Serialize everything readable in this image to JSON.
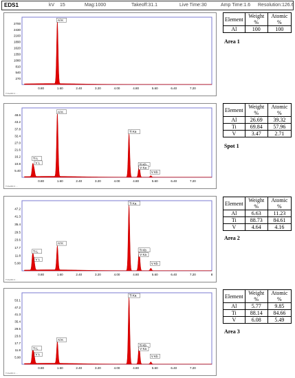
{
  "header": {
    "title": "EDS1",
    "kv_label": "kV",
    "kv_value": "15",
    "mag": "Mag:1000",
    "takeoff": "Takeoff:31.1",
    "live_time": "Live Time:30",
    "amp_time": "Amp Time:1.6",
    "resolution": "Resolution:126.6"
  },
  "table_headers": [
    "Element",
    "Weight %",
    "Atomic %"
  ],
  "chart_data": [
    {
      "type": "line",
      "area_label": "Area 1",
      "xlabel": "",
      "ylabel": "",
      "xlim": [
        0,
        8.0
      ],
      "ylim": [
        0,
        2970
      ],
      "x_ticks": [
        "0.80",
        "1.60",
        "2.40",
        "3.20",
        "4.00",
        "4.80",
        "5.60",
        "6.40",
        "7.20"
      ],
      "y_ticks": [
        "270",
        "540",
        "810",
        "1080",
        "1350",
        "1620",
        "1890",
        "2160",
        "2430",
        "2700"
      ],
      "peaks": [
        {
          "name": "Al K",
          "energy": 1.49,
          "height": 2750
        }
      ],
      "peak_labels": [
        {
          "text": "Al K",
          "energy": 1.49,
          "height": 2750
        }
      ],
      "composition": [
        {
          "element": "Al",
          "weight": "100",
          "atomic": "100"
        }
      ]
    },
    {
      "type": "line",
      "area_label": "Spot 1",
      "xlabel": "",
      "ylabel": "",
      "xlim": [
        0,
        8.0
      ],
      "ylim": [
        0,
        55.8
      ],
      "x_ticks": [
        "0.80",
        "1.60",
        "2.40",
        "3.20",
        "4.00",
        "4.80",
        "5.60",
        "6.40",
        "7.20"
      ],
      "y_ticks": [
        "5.40",
        "10.8",
        "16.2",
        "21.6",
        "27.0",
        "32.4",
        "37.8",
        "43.2",
        "48.6"
      ],
      "peaks": [
        {
          "name": "Ti L",
          "energy": 0.45,
          "height": 9.5
        },
        {
          "name": "V L",
          "energy": 0.51,
          "height": 5.5
        },
        {
          "name": "Al K",
          "energy": 1.49,
          "height": 51.0
        },
        {
          "name": "Ti Ka",
          "energy": 4.51,
          "height": 35.0
        },
        {
          "name": "Ti Kb",
          "energy": 4.93,
          "height": 6.5
        },
        {
          "name": "V Ka",
          "energy": 4.95,
          "height": 3.5
        },
        {
          "name": "V Kb",
          "energy": 5.43,
          "height": 1.2
        }
      ],
      "peak_labels": [
        {
          "text": "Ti L",
          "energy": 0.45,
          "height": 13.5
        },
        {
          "text": "V L",
          "energy": 0.55,
          "height": 10.0
        },
        {
          "text": "Al K",
          "energy": 1.49,
          "height": 51.0
        },
        {
          "text": "Ti Ka",
          "energy": 4.51,
          "height": 35.0
        },
        {
          "text": "Ti Kb",
          "energy": 4.93,
          "height": 8.6
        },
        {
          "text": "V Ka",
          "energy": 4.95,
          "height": 6.2
        },
        {
          "text": "V Kb",
          "energy": 5.43,
          "height": 2.6
        }
      ],
      "composition": [
        {
          "element": "Al",
          "weight": "26.69",
          "atomic": "39.32"
        },
        {
          "element": "Ti",
          "weight": "69.84",
          "atomic": "57.96"
        },
        {
          "element": "V",
          "weight": "3.47",
          "atomic": "2.71"
        }
      ]
    },
    {
      "type": "line",
      "area_label": "Area 2",
      "xlabel": "",
      "ylabel": "",
      "xlim": [
        0,
        8.0
      ],
      "ylim": [
        0,
        52.5
      ],
      "x_ticks": [
        "0.80",
        "1.60",
        "2.40",
        "3.20",
        "4.00",
        "4.80",
        "5.60",
        "6.40",
        "7.20",
        "8"
      ],
      "y_ticks": [
        "5.90",
        "11.8",
        "17.7",
        "23.6",
        "29.5",
        "35.4",
        "41.3",
        "47.2"
      ],
      "peaks": [
        {
          "name": "Ti L",
          "energy": 0.45,
          "height": 12.0
        },
        {
          "name": "V L",
          "energy": 0.51,
          "height": 6.0
        },
        {
          "name": "Al K",
          "energy": 1.49,
          "height": 18.0
        },
        {
          "name": "Ti Ka",
          "energy": 4.51,
          "height": 49.0
        },
        {
          "name": "Ti Kb",
          "energy": 4.93,
          "height": 9.5
        },
        {
          "name": "V Ka",
          "energy": 4.95,
          "height": 6.0
        },
        {
          "name": "V Kb",
          "energy": 5.43,
          "height": 1.8
        }
      ],
      "peak_labels": [
        {
          "text": "Ti L",
          "energy": 0.45,
          "height": 13.0
        },
        {
          "text": "V L",
          "energy": 0.55,
          "height": 7.0
        },
        {
          "text": "Al K",
          "energy": 1.49,
          "height": 19.0
        },
        {
          "text": "Ti Ka",
          "energy": 4.51,
          "height": 49.0
        },
        {
          "text": "Ti Kb",
          "energy": 4.93,
          "height": 14.0
        },
        {
          "text": "V Ka",
          "energy": 4.95,
          "height": 10.5
        },
        {
          "text": "V Kb",
          "energy": 5.43,
          "height": 4.0
        }
      ],
      "composition": [
        {
          "element": "Al",
          "weight": "6.63",
          "atomic": "11.23"
        },
        {
          "element": "Ti",
          "weight": "88.73",
          "atomic": "84.61"
        },
        {
          "element": "V",
          "weight": "4.64",
          "atomic": "4.16"
        }
      ]
    },
    {
      "type": "line",
      "area_label": "Area 3",
      "xlabel": "",
      "ylabel": "",
      "xlim": [
        0,
        8.0
      ],
      "ylim": [
        0,
        59.0
      ],
      "x_ticks": [
        "0.80",
        "1.60",
        "2.40",
        "3.20",
        "4.00",
        "4.80",
        "5.60",
        "6.40",
        "7.20"
      ],
      "y_ticks": [
        "5.90",
        "11.8",
        "17.7",
        "23.6",
        "29.5",
        "35.4",
        "41.3",
        "47.2",
        "53.1"
      ],
      "peaks": [
        {
          "name": "Ti L",
          "energy": 0.45,
          "height": 11.0
        },
        {
          "name": "V L",
          "energy": 0.51,
          "height": 6.0
        },
        {
          "name": "Al K",
          "energy": 1.49,
          "height": 18.0
        },
        {
          "name": "Ti Ka",
          "energy": 4.51,
          "height": 55.0
        },
        {
          "name": "Ti Kb",
          "energy": 4.93,
          "height": 10.0
        },
        {
          "name": "V Ka",
          "energy": 4.95,
          "height": 6.0
        },
        {
          "name": "V Kb",
          "energy": 5.43,
          "height": 1.8
        }
      ],
      "peak_labels": [
        {
          "text": "Ti L",
          "energy": 0.45,
          "height": 11.5
        },
        {
          "text": "V L",
          "energy": 0.55,
          "height": 6.5
        },
        {
          "text": "Al K",
          "energy": 1.49,
          "height": 18.5
        },
        {
          "text": "Ti Ka",
          "energy": 4.51,
          "height": 55.0
        },
        {
          "text": "Ti Kb",
          "energy": 4.93,
          "height": 14.0
        },
        {
          "text": "V Ka",
          "energy": 4.95,
          "height": 11.0
        },
        {
          "text": "V Kb",
          "energy": 5.43,
          "height": 5.0
        }
      ],
      "composition": [
        {
          "element": "Al",
          "weight": "5.77",
          "atomic": "9.85"
        },
        {
          "element": "Ti",
          "weight": "88.14",
          "atomic": "84.66"
        },
        {
          "element": "V",
          "weight": "6.08",
          "atomic": "5.49"
        }
      ]
    }
  ],
  "colors": {
    "spectrum_fill": "#e00000",
    "spectrum_line": "#c00000",
    "frame": "#7a7ad0",
    "axis_text": "#000000",
    "footer_text": "#555555"
  },
  "footer_text": "Ti Ka/Kb  V  ..."
}
